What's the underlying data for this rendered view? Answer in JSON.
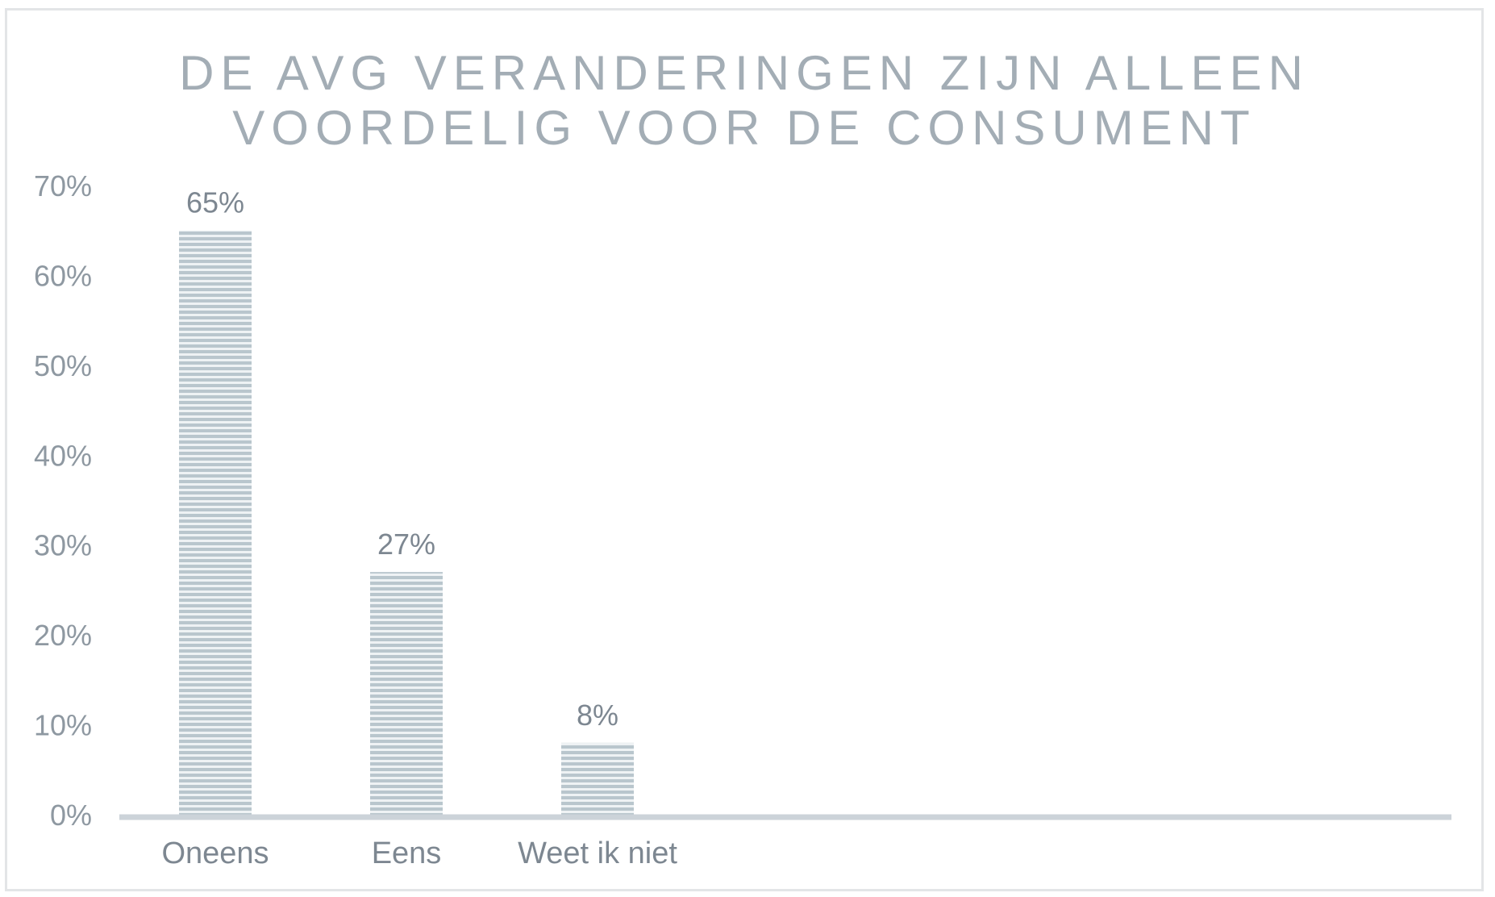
{
  "chart_data": {
    "type": "bar",
    "title_lines": [
      "DE AVG VERANDERINGEN ZIJN ALLEEN",
      "VOORDELIG VOOR DE CONSUMENT"
    ],
    "categories": [
      "Oneens",
      "Eens",
      "Weet ik niet"
    ],
    "values": [
      65,
      27,
      8
    ],
    "data_labels": [
      "65%",
      "27%",
      "8%"
    ],
    "ylim": [
      0,
      70
    ],
    "yticks": [
      0,
      10,
      20,
      30,
      40,
      50,
      60,
      70
    ],
    "ytick_labels": [
      "0%",
      "10%",
      "20%",
      "30%",
      "40%",
      "50%",
      "60%",
      "70%"
    ],
    "xlabel": "",
    "ylabel": "",
    "grid": false,
    "legend": "none",
    "colors": {
      "bar_stripe": "#b9c6cd",
      "bar_base": "#eef2f4",
      "axis": "#ccd3d9",
      "title": "#a3adb5"
    }
  }
}
